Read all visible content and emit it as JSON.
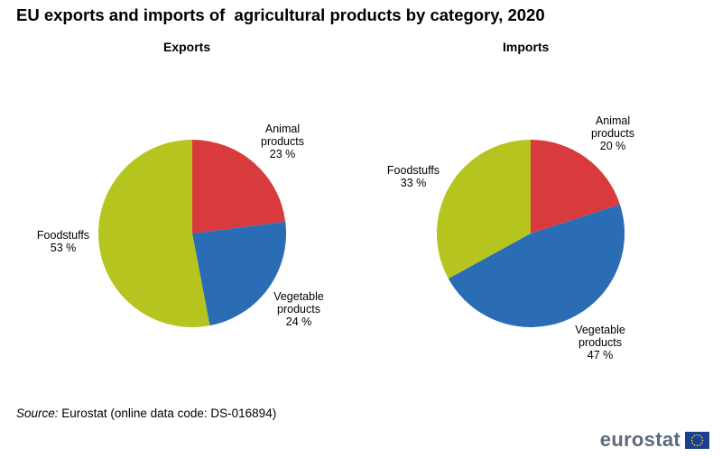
{
  "title": "EU exports and imports of  agricultural products by category, 2020",
  "source": {
    "label": "Source:",
    "text": "Eurostat (online data code: DS-016894)"
  },
  "logo": {
    "text": "eurostat"
  },
  "colors": {
    "animal": "#d93a3e",
    "vegetable": "#2a6db5",
    "foodstuffs": "#b5c41e",
    "logo_text": "#5b6b7c",
    "flag_blue": "#1b3f93",
    "flag_star": "#ffd200"
  },
  "chart_data": [
    {
      "type": "pie",
      "title": "Exports",
      "unit": "%",
      "slices": [
        {
          "label_lines": [
            "Animal",
            "products",
            "23 %"
          ],
          "value": 23,
          "color": "#d93a3e"
        },
        {
          "label_lines": [
            "Vegetable",
            "products",
            "24 %"
          ],
          "value": 24,
          "color": "#2a6db5"
        },
        {
          "label_lines": [
            "Foodstuffs",
            "53 %"
          ],
          "value": 53,
          "color": "#b5c41e"
        }
      ]
    },
    {
      "type": "pie",
      "title": "Imports",
      "unit": "%",
      "slices": [
        {
          "label_lines": [
            "Animal",
            "products",
            "20 %"
          ],
          "value": 20,
          "color": "#d93a3e"
        },
        {
          "label_lines": [
            "Vegetable",
            "products",
            "47 %"
          ],
          "value": 47,
          "color": "#2a6db5"
        },
        {
          "label_lines": [
            "Foodstuffs",
            "33 %"
          ],
          "value": 33,
          "color": "#b5c41e"
        }
      ]
    }
  ]
}
